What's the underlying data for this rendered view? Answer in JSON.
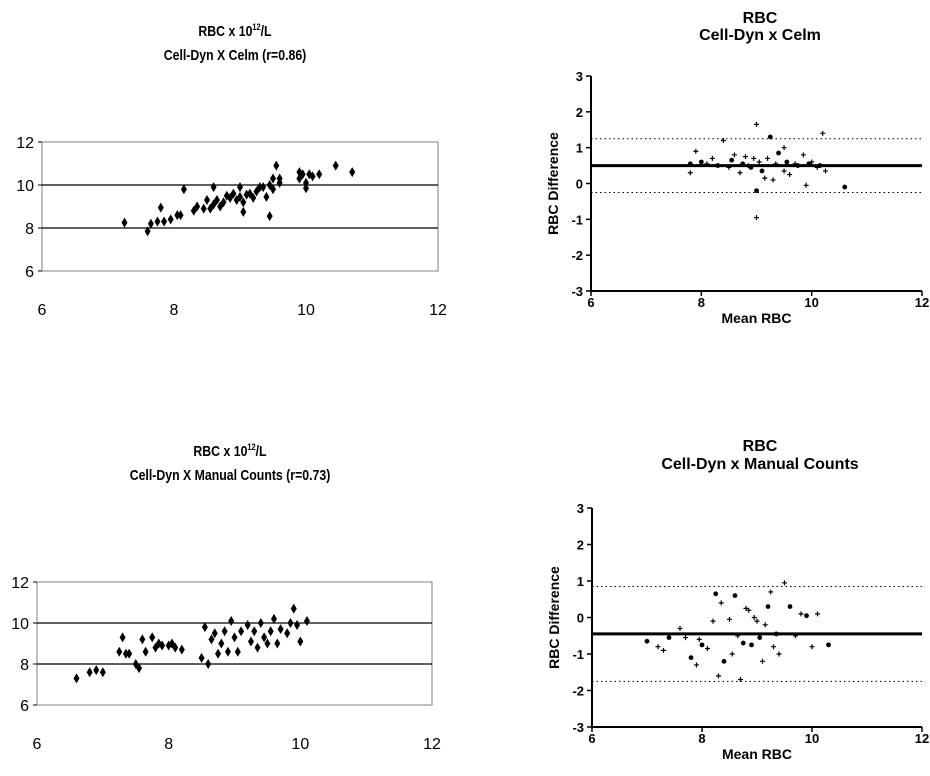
{
  "chart_data": [
    {
      "id": "scatter1",
      "type": "scatter",
      "title": "RBC x 10",
      "title_sup": "12",
      "title_unit": "/L",
      "subtitle": "Cell-Dyn X Celm (r=0.86)",
      "xlim": [
        6,
        12
      ],
      "ylim": [
        6,
        12
      ],
      "xticks": [
        "6",
        "8",
        "10",
        "12"
      ],
      "yticks": [
        "6",
        "8",
        "10",
        "12"
      ],
      "grid": true,
      "points": [
        [
          7.25,
          8.25
        ],
        [
          7.6,
          7.85
        ],
        [
          7.65,
          8.2
        ],
        [
          7.75,
          8.3
        ],
        [
          7.8,
          8.95
        ],
        [
          7.85,
          8.3
        ],
        [
          7.95,
          8.4
        ],
        [
          8.05,
          8.6
        ],
        [
          8.1,
          8.6
        ],
        [
          8.15,
          9.8
        ],
        [
          8.3,
          8.8
        ],
        [
          8.35,
          9.0
        ],
        [
          8.45,
          8.9
        ],
        [
          8.5,
          9.3
        ],
        [
          8.55,
          8.9
        ],
        [
          8.6,
          9.9
        ],
        [
          8.6,
          9.1
        ],
        [
          8.65,
          9.3
        ],
        [
          8.7,
          9.0
        ],
        [
          8.75,
          9.2
        ],
        [
          8.8,
          9.5
        ],
        [
          8.85,
          9.4
        ],
        [
          8.9,
          9.6
        ],
        [
          8.95,
          9.3
        ],
        [
          9.0,
          9.9
        ],
        [
          9.0,
          9.45
        ],
        [
          9.05,
          9.2
        ],
        [
          9.05,
          8.75
        ],
        [
          9.1,
          9.55
        ],
        [
          9.15,
          9.6
        ],
        [
          9.2,
          9.4
        ],
        [
          9.25,
          9.7
        ],
        [
          9.3,
          9.9
        ],
        [
          9.35,
          9.9
        ],
        [
          9.4,
          9.45
        ],
        [
          9.45,
          10.0
        ],
        [
          9.45,
          8.55
        ],
        [
          9.5,
          10.3
        ],
        [
          9.5,
          9.8
        ],
        [
          9.55,
          10.9
        ],
        [
          9.6,
          10.3
        ],
        [
          9.6,
          10.1
        ],
        [
          9.9,
          10.6
        ],
        [
          9.9,
          10.3
        ],
        [
          9.95,
          10.5
        ],
        [
          10.0,
          10.1
        ],
        [
          10.0,
          9.85
        ],
        [
          10.05,
          10.5
        ],
        [
          10.1,
          10.4
        ],
        [
          10.2,
          10.5
        ],
        [
          10.45,
          10.9
        ],
        [
          10.7,
          10.6
        ]
      ]
    },
    {
      "id": "ba1",
      "type": "scatter",
      "title": "RBC",
      "subtitle": "Cell-Dyn x Celm",
      "xlabel": "Mean RBC",
      "ylabel": "RBC Difference",
      "xlim": [
        6,
        12
      ],
      "ylim": [
        -3,
        3
      ],
      "xticks": [
        "6",
        "8",
        "10",
        "12"
      ],
      "yticks": [
        "-3",
        "-2",
        "-1",
        "0",
        "1",
        "2",
        "3"
      ],
      "mean_line": 0.5,
      "limits": [
        1.25,
        -0.25
      ],
      "points": [
        [
          7.8,
          0.55
        ],
        [
          7.8,
          0.3
        ],
        [
          7.9,
          0.9
        ],
        [
          8.0,
          0.6
        ],
        [
          8.1,
          0.55
        ],
        [
          8.2,
          0.7
        ],
        [
          8.3,
          0.5
        ],
        [
          8.4,
          1.2
        ],
        [
          8.5,
          0.45
        ],
        [
          8.55,
          0.65
        ],
        [
          8.6,
          0.8
        ],
        [
          8.7,
          0.3
        ],
        [
          8.75,
          0.55
        ],
        [
          8.8,
          0.75
        ],
        [
          8.85,
          0.5
        ],
        [
          8.9,
          0.45
        ],
        [
          8.95,
          0.7
        ],
        [
          9.0,
          -0.95
        ],
        [
          9.0,
          -0.2
        ],
        [
          9.0,
          1.65
        ],
        [
          9.05,
          0.6
        ],
        [
          9.1,
          0.35
        ],
        [
          9.15,
          0.15
        ],
        [
          9.2,
          0.7
        ],
        [
          9.25,
          1.3
        ],
        [
          9.3,
          0.1
        ],
        [
          9.35,
          0.55
        ],
        [
          9.4,
          0.85
        ],
        [
          9.5,
          1.0
        ],
        [
          9.5,
          0.35
        ],
        [
          9.55,
          0.6
        ],
        [
          9.6,
          0.25
        ],
        [
          9.7,
          0.55
        ],
        [
          9.75,
          0.5
        ],
        [
          9.85,
          0.8
        ],
        [
          9.9,
          -0.05
        ],
        [
          9.95,
          0.55
        ],
        [
          10.0,
          0.6
        ],
        [
          10.1,
          0.45
        ],
        [
          10.15,
          0.5
        ],
        [
          10.2,
          1.4
        ],
        [
          10.25,
          0.35
        ],
        [
          10.6,
          -0.1
        ]
      ]
    },
    {
      "id": "scatter2",
      "type": "scatter",
      "title": "RBC x 10",
      "title_sup": "12",
      "title_unit": "/L",
      "subtitle": "Cell-Dyn X Manual Counts (r=0.73)",
      "xlim": [
        6,
        12
      ],
      "ylim": [
        6,
        12
      ],
      "xticks": [
        "6",
        "8",
        "10",
        "12"
      ],
      "yticks": [
        "6",
        "8",
        "10",
        "12"
      ],
      "grid": true,
      "points": [
        [
          6.6,
          7.3
        ],
        [
          6.8,
          7.6
        ],
        [
          6.9,
          7.7
        ],
        [
          7.0,
          7.6
        ],
        [
          7.25,
          8.6
        ],
        [
          7.3,
          9.3
        ],
        [
          7.35,
          8.5
        ],
        [
          7.4,
          8.5
        ],
        [
          7.5,
          8.0
        ],
        [
          7.55,
          7.8
        ],
        [
          7.6,
          9.2
        ],
        [
          7.65,
          8.6
        ],
        [
          7.75,
          9.3
        ],
        [
          7.8,
          8.8
        ],
        [
          7.85,
          9.0
        ],
        [
          7.9,
          8.9
        ],
        [
          8.0,
          8.9
        ],
        [
          8.05,
          9.0
        ],
        [
          8.1,
          8.8
        ],
        [
          8.2,
          8.7
        ],
        [
          8.5,
          8.3
        ],
        [
          8.55,
          9.8
        ],
        [
          8.6,
          8.0
        ],
        [
          8.65,
          9.2
        ],
        [
          8.7,
          9.5
        ],
        [
          8.75,
          8.5
        ],
        [
          8.8,
          9.0
        ],
        [
          8.85,
          9.6
        ],
        [
          8.9,
          8.6
        ],
        [
          8.95,
          10.1
        ],
        [
          9.0,
          9.3
        ],
        [
          9.05,
          8.6
        ],
        [
          9.1,
          9.6
        ],
        [
          9.2,
          9.9
        ],
        [
          9.25,
          9.1
        ],
        [
          9.3,
          9.6
        ],
        [
          9.35,
          8.8
        ],
        [
          9.4,
          10.0
        ],
        [
          9.45,
          9.3
        ],
        [
          9.5,
          9.0
        ],
        [
          9.55,
          9.6
        ],
        [
          9.6,
          10.2
        ],
        [
          9.65,
          9.0
        ],
        [
          9.7,
          9.7
        ],
        [
          9.8,
          9.5
        ],
        [
          9.85,
          10.0
        ],
        [
          9.9,
          10.7
        ],
        [
          9.95,
          9.9
        ],
        [
          10.0,
          9.1
        ],
        [
          10.1,
          10.1
        ]
      ]
    },
    {
      "id": "ba2",
      "type": "scatter",
      "title": "RBC",
      "subtitle": "Cell-Dyn x Manual Counts",
      "xlabel": "Mean RBC",
      "ylabel": "RBC Difference",
      "xlim": [
        6,
        12
      ],
      "ylim": [
        -3,
        3
      ],
      "xticks": [
        "6",
        "8",
        "10",
        "12"
      ],
      "yticks": [
        "-3",
        "-2",
        "-1",
        "0",
        "1",
        "2",
        "3"
      ],
      "mean_line": -0.45,
      "limits": [
        0.85,
        -1.75
      ],
      "points": [
        [
          7.0,
          -0.65
        ],
        [
          7.2,
          -0.8
        ],
        [
          7.3,
          -0.9
        ],
        [
          7.4,
          -0.55
        ],
        [
          7.6,
          -0.3
        ],
        [
          7.7,
          -0.55
        ],
        [
          7.8,
          -1.1
        ],
        [
          7.9,
          -1.3
        ],
        [
          7.95,
          -0.6
        ],
        [
          8.0,
          -0.75
        ],
        [
          8.1,
          -0.85
        ],
        [
          8.2,
          -0.1
        ],
        [
          8.25,
          0.65
        ],
        [
          8.3,
          -1.6
        ],
        [
          8.35,
          0.4
        ],
        [
          8.4,
          -1.2
        ],
        [
          8.5,
          -0.05
        ],
        [
          8.55,
          -1.0
        ],
        [
          8.6,
          0.6
        ],
        [
          8.65,
          -0.5
        ],
        [
          8.7,
          -1.7
        ],
        [
          8.75,
          -0.7
        ],
        [
          8.8,
          0.25
        ],
        [
          8.85,
          0.2
        ],
        [
          8.9,
          -0.75
        ],
        [
          8.95,
          0.0
        ],
        [
          9.0,
          -0.1
        ],
        [
          9.05,
          -0.55
        ],
        [
          9.1,
          -1.2
        ],
        [
          9.15,
          -0.2
        ],
        [
          9.2,
          0.3
        ],
        [
          9.25,
          0.7
        ],
        [
          9.3,
          -0.8
        ],
        [
          9.35,
          -0.45
        ],
        [
          9.4,
          -1.0
        ],
        [
          9.5,
          0.95
        ],
        [
          9.6,
          0.3
        ],
        [
          9.7,
          -0.5
        ],
        [
          9.8,
          0.1
        ],
        [
          9.9,
          0.05
        ],
        [
          10.0,
          -0.8
        ],
        [
          10.1,
          0.1
        ],
        [
          10.3,
          -0.75
        ]
      ]
    }
  ]
}
